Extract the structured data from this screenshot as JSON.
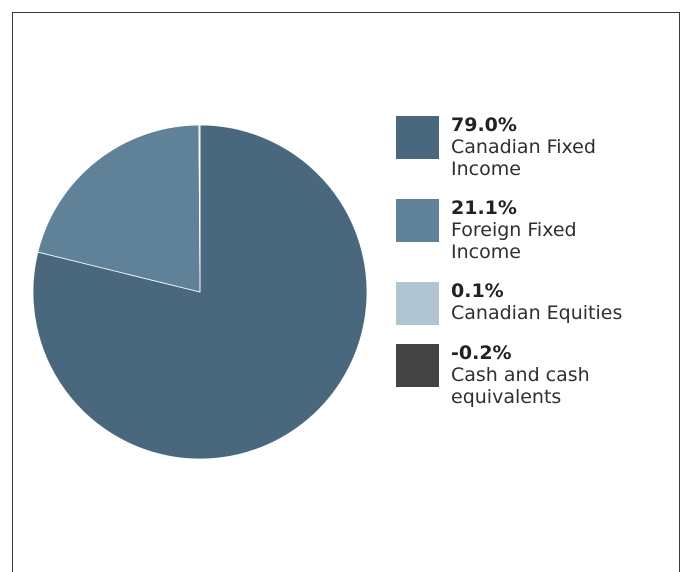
{
  "chart_data": {
    "type": "pie",
    "series": [
      {
        "value": 79.0,
        "percent_label": "79.0%",
        "label": "Canadian Fixed Income",
        "color": "#4a687d"
      },
      {
        "value": 21.1,
        "percent_label": "21.1%",
        "label": "Foreign Fixed Income",
        "color": "#5f8299"
      },
      {
        "value": 0.1,
        "percent_label": "0.1%",
        "label": "Canadian Equities",
        "color": "#b1c5d1"
      },
      {
        "value": -0.2,
        "percent_label": "-0.2%",
        "label": "Cash and cash equivalents",
        "color": "#444444"
      }
    ],
    "legend_position": "right"
  }
}
